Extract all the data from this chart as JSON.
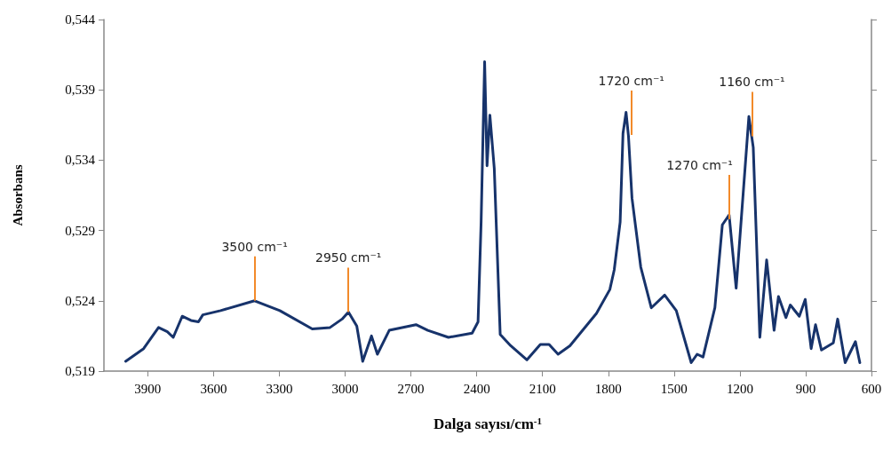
{
  "chart_data": {
    "type": "line",
    "xlabel": "Dalga sayısı/cm$^{-1}$",
    "ylabel": "Absorbans",
    "xlim": [
      4100,
      600
    ],
    "xticks": [
      3900,
      3600,
      3300,
      3000,
      2700,
      2400,
      2100,
      1800,
      1500,
      1200,
      900,
      600
    ],
    "ylim": [
      0.519,
      0.544
    ],
    "yticks": [
      {
        "value": 0.519,
        "label": "0,519"
      },
      {
        "value": 0.524,
        "label": "0,524"
      },
      {
        "value": 0.529,
        "label": "0,529"
      },
      {
        "value": 0.534,
        "label": "0,534"
      },
      {
        "value": 0.539,
        "label": "0,539"
      },
      {
        "value": 0.544,
        "label": "0,544"
      }
    ],
    "grid": false,
    "marker": "none",
    "line_style": "solid",
    "series": [
      {
        "color": "#17336b",
        "x": [
          4001,
          3919,
          3851,
          3811,
          3784,
          3743,
          3703,
          3669,
          3649,
          3568,
          3413,
          3298,
          3150,
          3069,
          3014,
          2985,
          2947,
          2920,
          2880,
          2853,
          2799,
          2677,
          2623,
          2529,
          2421,
          2394,
          2380,
          2364,
          2353,
          2340,
          2320,
          2293,
          2245,
          2171,
          2110,
          2070,
          2029,
          1975,
          1854,
          1793,
          1773,
          1746,
          1733,
          1719,
          1708,
          1692,
          1652,
          1604,
          1543,
          1490,
          1422,
          1395,
          1368,
          1314,
          1280,
          1249,
          1217,
          1159,
          1139,
          1109,
          1078,
          1044,
          1024,
          990,
          970,
          929,
          902,
          875,
          855,
          828,
          774,
          754,
          720,
          673,
          653
        ],
        "values": [
          0.5197,
          0.5206,
          0.5221,
          0.5218,
          0.5214,
          0.5229,
          0.5226,
          0.5225,
          0.523,
          0.5233,
          0.524,
          0.5233,
          0.522,
          0.5221,
          0.5227,
          0.5232,
          0.5222,
          0.5197,
          0.5215,
          0.5202,
          0.5219,
          0.5223,
          0.5219,
          0.5214,
          0.5217,
          0.5225,
          0.5296,
          0.541,
          0.5336,
          0.5372,
          0.5334,
          0.5216,
          0.5208,
          0.5198,
          0.5209,
          0.5209,
          0.5202,
          0.5208,
          0.5231,
          0.5248,
          0.5262,
          0.5296,
          0.5359,
          0.5374,
          0.5357,
          0.5313,
          0.5264,
          0.5235,
          0.5244,
          0.5233,
          0.5196,
          0.5202,
          0.52,
          0.5235,
          0.5294,
          0.5301,
          0.5249,
          0.5371,
          0.5349,
          0.5214,
          0.5269,
          0.5219,
          0.5243,
          0.5228,
          0.5237,
          0.5229,
          0.5241,
          0.5206,
          0.5223,
          0.5205,
          0.521,
          0.5227,
          0.5196,
          0.5211,
          0.5196
        ]
      }
    ],
    "annotations": [
      {
        "text": "3500 cm⁻¹",
        "x": 3413,
        "y": 0.524
      },
      {
        "text": "2950 cm⁻¹",
        "x": 2985,
        "y": 0.5232
      },
      {
        "text": "1720 cm⁻¹",
        "x": 1695,
        "y": 0.5358
      },
      {
        "text": "1270 cm⁻¹",
        "x": 1249,
        "y": 0.5298
      },
      {
        "text": "1160 cm⁻¹",
        "x": 1145,
        "y": 0.5357
      }
    ]
  }
}
